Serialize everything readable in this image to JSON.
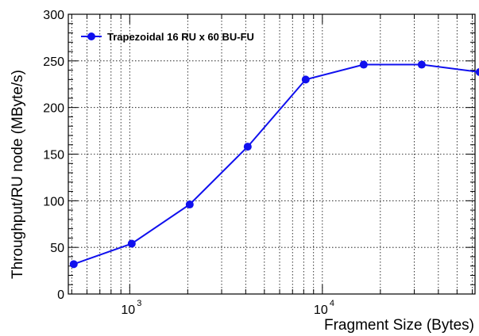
{
  "chart_data": {
    "type": "line",
    "xscale": "log",
    "xlabel": "Fragment Size (Bytes)",
    "ylabel": "Throughput/RU node (MByte/s)",
    "xlim": [
      480,
      62000
    ],
    "ylim": [
      0,
      300
    ],
    "yticks": [
      "0",
      "50",
      "100",
      "150",
      "200",
      "250",
      "300"
    ],
    "xticks": [
      {
        "value": 1000,
        "base": "10",
        "exp": "3"
      },
      {
        "value": 10000,
        "base": "10",
        "exp": "4"
      }
    ],
    "grid": true,
    "legend_position": "top-left",
    "series": [
      {
        "name": "Trapezoidal 16 RU x 60 BU-FU",
        "color": "#1010ee",
        "x": [
          512,
          1024,
          2048,
          4096,
          8192,
          16384,
          32768,
          65536
        ],
        "y": [
          32,
          54,
          96,
          158,
          230,
          246,
          246,
          238
        ]
      }
    ]
  }
}
